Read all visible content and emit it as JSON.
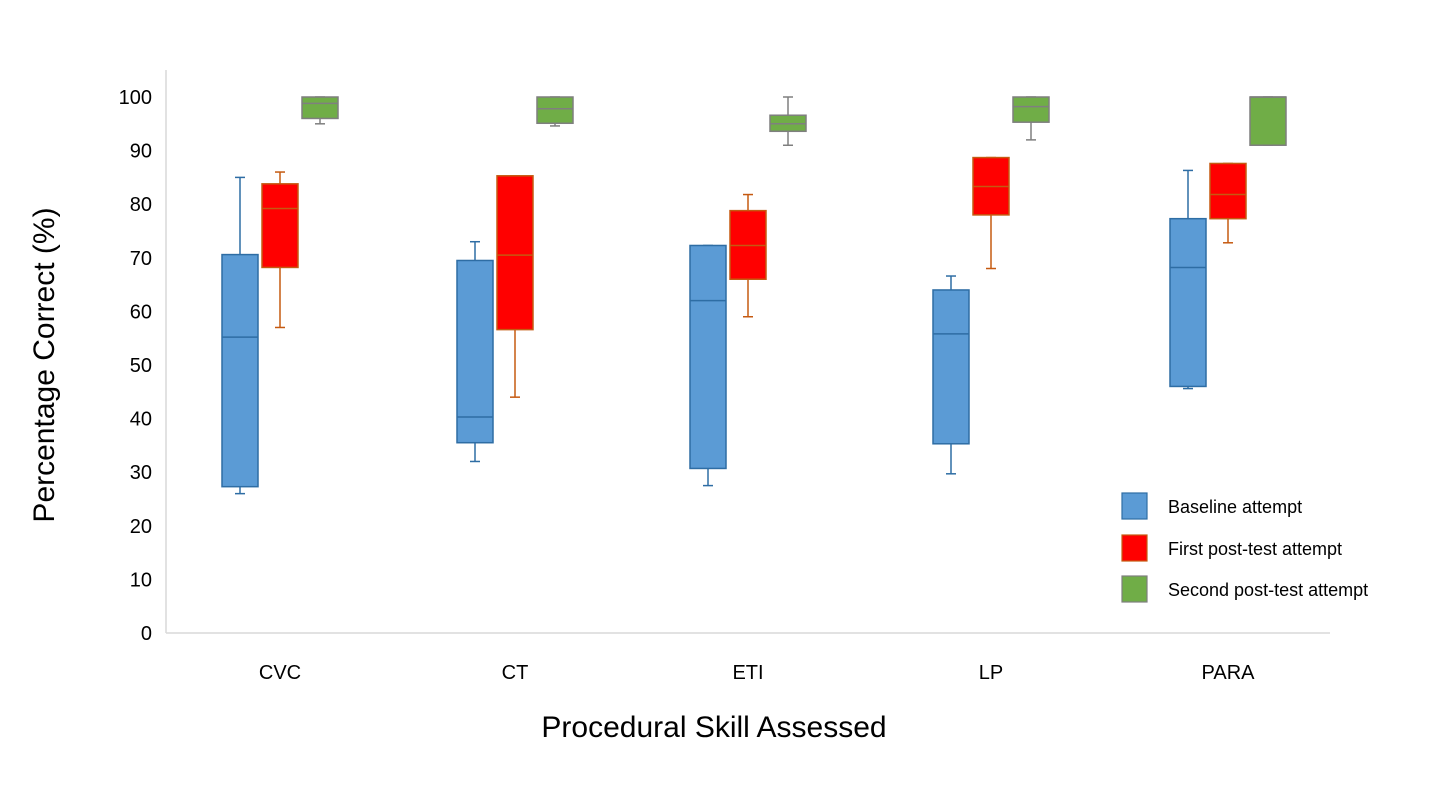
{
  "chart_data": {
    "type": "boxplot",
    "title": "",
    "xlabel": "Procedural Skill Assessed",
    "ylabel": "Percentage Correct (%)",
    "ylim": [
      0,
      100
    ],
    "yticks": [
      0,
      10,
      20,
      30,
      40,
      50,
      60,
      70,
      80,
      90,
      100
    ],
    "grid": false,
    "legend_position": "bottom-right",
    "categories": [
      "CVC",
      "CT",
      "ETI",
      "LP",
      "PARA"
    ],
    "series": [
      {
        "name": "Baseline attempt",
        "fill": "#5b9bd5",
        "stroke": "#2e6da4",
        "boxes": [
          {
            "min": 26,
            "q1": 27.3,
            "median": 55.2,
            "q3": 70.6,
            "max": 85
          },
          {
            "min": 32,
            "q1": 35.5,
            "median": 40.3,
            "q3": 69.5,
            "max": 73
          },
          {
            "min": 27.5,
            "q1": 30.7,
            "median": 62,
            "q3": 72.3,
            "max": 72.3
          },
          {
            "min": 29.7,
            "q1": 35.3,
            "median": 55.8,
            "q3": 64,
            "max": 66.6
          },
          {
            "min": 45.6,
            "q1": 46,
            "median": 68.2,
            "q3": 77.3,
            "max": 86.3
          }
        ]
      },
      {
        "name": "First post-test attempt",
        "fill": "#ff0000",
        "stroke": "#c55a11",
        "boxes": [
          {
            "min": 57,
            "q1": 68.2,
            "median": 79.2,
            "q3": 83.8,
            "max": 86
          },
          {
            "min": 44,
            "q1": 56.6,
            "median": 70.5,
            "q3": 85.3,
            "max": 85.3
          },
          {
            "min": 59,
            "q1": 66,
            "median": 72.3,
            "q3": 78.8,
            "max": 81.8
          },
          {
            "min": 68,
            "q1": 78,
            "median": 83.3,
            "q3": 88.7,
            "max": 88.7
          },
          {
            "min": 72.8,
            "q1": 77.3,
            "median": 81.8,
            "q3": 87.6,
            "max": 87.6
          }
        ]
      },
      {
        "name": "Second post-test attempt",
        "fill": "#70ad47",
        "stroke": "#7f7f7f",
        "boxes": [
          {
            "min": 95,
            "q1": 96,
            "median": 98.8,
            "q3": 100,
            "max": 100
          },
          {
            "min": 94.6,
            "q1": 95.1,
            "median": 97.8,
            "q3": 100,
            "max": 100
          },
          {
            "min": 91,
            "q1": 93.6,
            "median": 95,
            "q3": 96.6,
            "max": 100
          },
          {
            "min": 92,
            "q1": 95.3,
            "median": 98.2,
            "q3": 100,
            "max": 100
          },
          {
            "min": 91,
            "q1": 91,
            "median": 100,
            "q3": 100,
            "max": 100
          }
        ]
      }
    ]
  }
}
